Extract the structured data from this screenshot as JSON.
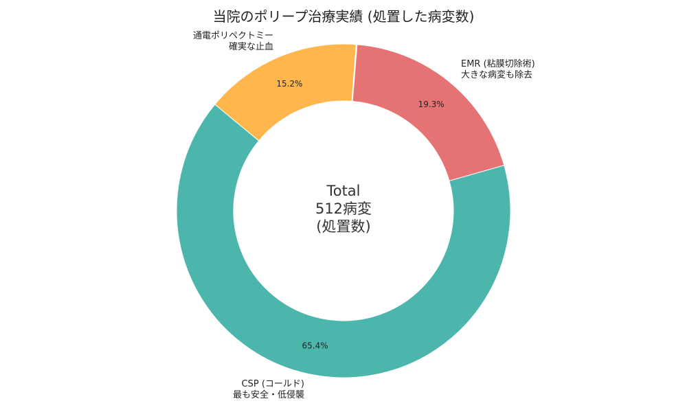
{
  "chart_data": {
    "type": "pie",
    "subtype": "donut",
    "title": "当院のポリープ治療実績 (処置した病変数)",
    "center_text": [
      "Total",
      "512病変",
      "(処置数)"
    ],
    "total": 512,
    "start_angle_deg": 85.3,
    "direction": "clockwise",
    "slices": [
      {
        "name": "EMR (粘膜切除術)",
        "label": [
          "EMR (粘膜切除術)",
          "大きな病変も除去"
        ],
        "percent": 19.3,
        "value": 99,
        "color": "#E57373"
      },
      {
        "name": "CSP (コールド)",
        "label": [
          "CSP (コールド)",
          "最も安全・低侵襲"
        ],
        "percent": 65.4,
        "value": 335,
        "color": "#4DB6AC"
      },
      {
        "name": "通電ポリペクトミー",
        "label": [
          "通電ポリペクトミー",
          "確実な止血"
        ],
        "percent": 15.2,
        "value": 78,
        "color": "#FFB74D"
      }
    ],
    "legend": null
  }
}
